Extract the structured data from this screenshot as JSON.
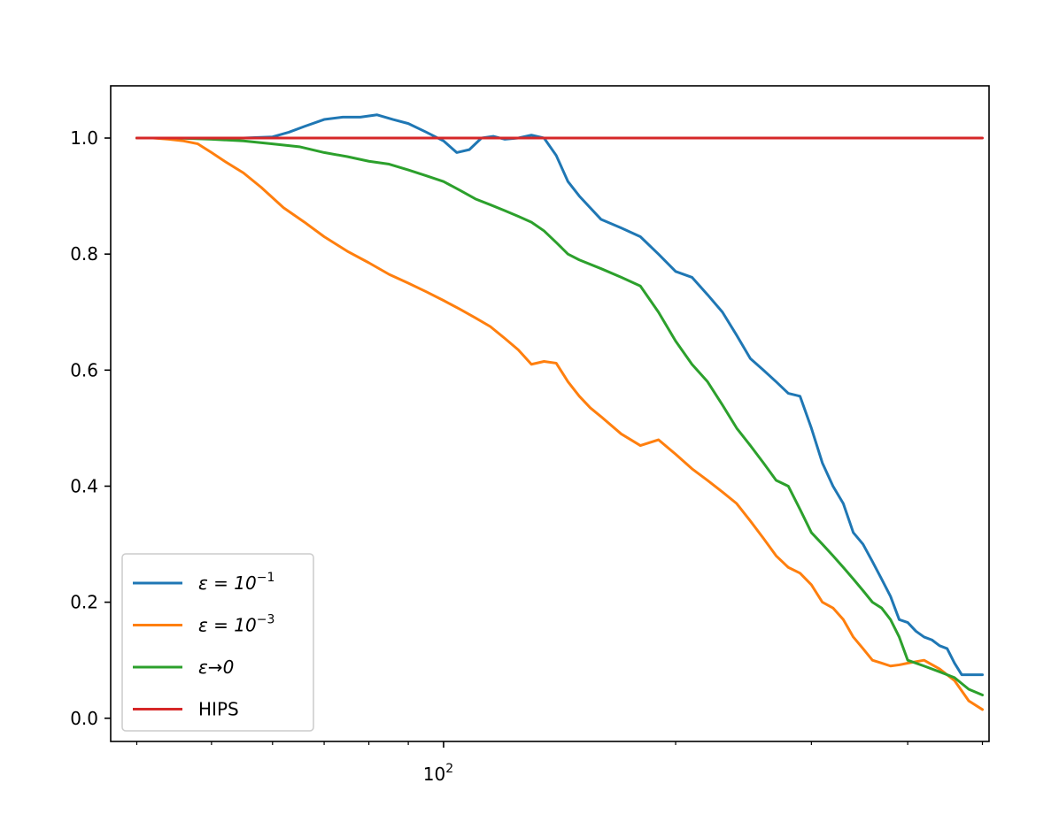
{
  "chart_data": {
    "type": "line",
    "title": "",
    "xlabel": "",
    "ylabel": "",
    "xscale": "log",
    "xlim": [
      37,
      510
    ],
    "ylim": [
      -0.04,
      1.09
    ],
    "grid": false,
    "legend_position": "lower-left",
    "x_major_ticks": [
      {
        "value": 100,
        "base": "10",
        "exp": "2"
      }
    ],
    "x_minor_ticks": [
      40,
      50,
      60,
      70,
      80,
      90,
      200,
      300,
      400,
      500
    ],
    "y_ticks": [
      {
        "value": 0.0,
        "label": "0.0"
      },
      {
        "value": 0.2,
        "label": "0.2"
      },
      {
        "value": 0.4,
        "label": "0.4"
      },
      {
        "value": 0.6,
        "label": "0.6"
      },
      {
        "value": 0.8,
        "label": "0.8"
      },
      {
        "value": 1.0,
        "label": "1.0"
      }
    ],
    "series": [
      {
        "name": "ε = 10⁻¹",
        "legend_label": {
          "prefix": "ε = 10",
          "sup": "−1"
        },
        "color": "#1f77b4",
        "x": [
          40,
          45,
          50,
          55,
          60,
          63,
          66,
          70,
          74,
          78,
          82,
          86,
          90,
          95,
          100,
          104,
          108,
          112,
          116,
          120,
          125,
          130,
          135,
          140,
          145,
          150,
          160,
          170,
          180,
          190,
          200,
          210,
          220,
          230,
          240,
          250,
          260,
          270,
          280,
          290,
          300,
          310,
          320,
          330,
          340,
          350,
          360,
          370,
          380,
          390,
          400,
          410,
          420,
          430,
          440,
          450,
          460,
          470,
          480,
          490,
          500
        ],
        "y": [
          1.0,
          1.0,
          1.0,
          1.0,
          1.002,
          1.01,
          1.02,
          1.032,
          1.036,
          1.036,
          1.04,
          1.032,
          1.025,
          1.01,
          0.995,
          0.975,
          0.98,
          1.0,
          1.003,
          0.998,
          1.0,
          1.005,
          1.0,
          0.97,
          0.925,
          0.9,
          0.86,
          0.845,
          0.83,
          0.8,
          0.77,
          0.76,
          0.73,
          0.7,
          0.66,
          0.62,
          0.6,
          0.58,
          0.56,
          0.555,
          0.5,
          0.44,
          0.4,
          0.37,
          0.32,
          0.3,
          0.27,
          0.24,
          0.21,
          0.17,
          0.165,
          0.15,
          0.14,
          0.135,
          0.125,
          0.12,
          0.095,
          0.075,
          0.075,
          0.075,
          0.075
        ]
      },
      {
        "name": "ε = 10⁻³",
        "legend_label": {
          "prefix": "ε = 10",
          "sup": "−3"
        },
        "color": "#ff7f0e",
        "x": [
          40,
          42,
          44,
          46,
          48,
          50,
          52,
          55,
          58,
          62,
          66,
          70,
          75,
          80,
          85,
          90,
          95,
          100,
          105,
          110,
          115,
          120,
          125,
          130,
          135,
          140,
          145,
          150,
          155,
          160,
          170,
          180,
          190,
          200,
          210,
          220,
          230,
          240,
          250,
          260,
          270,
          280,
          290,
          300,
          310,
          320,
          330,
          340,
          350,
          360,
          370,
          380,
          390,
          400,
          420,
          440,
          460,
          480,
          500
        ],
        "y": [
          1.0,
          1.0,
          0.998,
          0.995,
          0.99,
          0.975,
          0.96,
          0.94,
          0.915,
          0.88,
          0.855,
          0.83,
          0.805,
          0.785,
          0.765,
          0.75,
          0.735,
          0.72,
          0.705,
          0.69,
          0.675,
          0.655,
          0.635,
          0.61,
          0.615,
          0.612,
          0.58,
          0.555,
          0.535,
          0.52,
          0.49,
          0.47,
          0.48,
          0.455,
          0.43,
          0.41,
          0.39,
          0.37,
          0.34,
          0.31,
          0.28,
          0.26,
          0.25,
          0.23,
          0.2,
          0.19,
          0.17,
          0.14,
          0.12,
          0.1,
          0.095,
          0.09,
          0.092,
          0.095,
          0.1,
          0.085,
          0.065,
          0.03,
          0.015
        ]
      },
      {
        "name": "ε→0",
        "legend_label": {
          "prefix": "ε→0",
          "sup": ""
        },
        "color": "#2ca02c",
        "x": [
          40,
          45,
          50,
          55,
          60,
          65,
          70,
          75,
          80,
          85,
          90,
          95,
          100,
          105,
          110,
          115,
          120,
          125,
          130,
          135,
          140,
          145,
          150,
          160,
          170,
          180,
          190,
          200,
          210,
          220,
          230,
          240,
          250,
          260,
          270,
          280,
          290,
          300,
          310,
          320,
          330,
          340,
          350,
          360,
          370,
          380,
          390,
          400,
          420,
          440,
          460,
          480,
          500
        ],
        "y": [
          1.0,
          1.0,
          0.998,
          0.995,
          0.99,
          0.985,
          0.975,
          0.968,
          0.96,
          0.955,
          0.945,
          0.935,
          0.925,
          0.91,
          0.895,
          0.885,
          0.875,
          0.865,
          0.855,
          0.84,
          0.82,
          0.8,
          0.79,
          0.775,
          0.76,
          0.745,
          0.7,
          0.65,
          0.61,
          0.58,
          0.54,
          0.5,
          0.47,
          0.44,
          0.41,
          0.4,
          0.36,
          0.32,
          0.3,
          0.28,
          0.26,
          0.24,
          0.22,
          0.2,
          0.19,
          0.17,
          0.14,
          0.1,
          0.09,
          0.08,
          0.07,
          0.05,
          0.04
        ]
      },
      {
        "name": "HIPS",
        "legend_label": {
          "prefix": "HIPS",
          "sup": ""
        },
        "color": "#d62728",
        "x": [
          40,
          500
        ],
        "y": [
          1.0,
          1.0
        ]
      }
    ]
  }
}
